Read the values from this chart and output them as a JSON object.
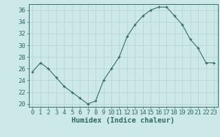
{
  "x": [
    0,
    1,
    2,
    3,
    4,
    5,
    6,
    7,
    8,
    9,
    10,
    11,
    12,
    13,
    14,
    15,
    16,
    17,
    18,
    19,
    20,
    21,
    22,
    23
  ],
  "y": [
    25.5,
    27,
    26,
    24.5,
    23,
    22,
    21,
    20,
    20.5,
    24,
    26,
    28,
    31.5,
    33.5,
    35,
    36,
    36.5,
    36.5,
    35,
    33.5,
    31,
    29.5,
    27,
    27
  ],
  "xlabel": "Humidex (Indice chaleur)",
  "ylabel": "",
  "ylim": [
    19.5,
    37
  ],
  "yticks": [
    20,
    22,
    24,
    26,
    28,
    30,
    32,
    34,
    36
  ],
  "xticks": [
    0,
    1,
    2,
    3,
    4,
    5,
    6,
    7,
    8,
    9,
    10,
    11,
    12,
    13,
    14,
    15,
    16,
    17,
    18,
    19,
    20,
    21,
    22,
    23
  ],
  "line_color": "#2e6b5e",
  "marker": "+",
  "bg_color": "#cde8e8",
  "grid_color": "#b8d4d4",
  "tick_fontsize": 6.5,
  "xlabel_fontsize": 7.5
}
